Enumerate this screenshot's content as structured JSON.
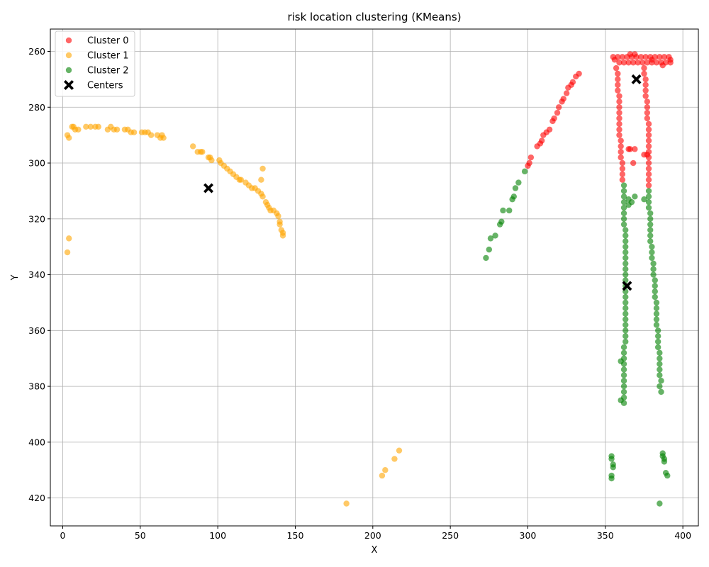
{
  "chart_data": {
    "type": "scatter",
    "title": "risk location clustering (KMeans)",
    "xlabel": "X",
    "ylabel": "Y",
    "xlim": [
      -8,
      410
    ],
    "ylim": [
      430,
      252
    ],
    "y_inverted": true,
    "grid": true,
    "legend_position": "top-left",
    "x_ticks": [
      0,
      50,
      100,
      150,
      200,
      250,
      300,
      350,
      400
    ],
    "y_ticks": [
      260,
      280,
      300,
      320,
      340,
      360,
      380,
      400,
      420
    ],
    "series": [
      {
        "name": "Cluster 0",
        "color": "#ff0000",
        "alpha": 0.6,
        "points": [
          [
            333,
            268
          ],
          [
            331,
            269
          ],
          [
            329,
            271
          ],
          [
            328,
            272
          ],
          [
            326,
            273
          ],
          [
            325,
            275
          ],
          [
            323,
            277
          ],
          [
            322,
            278
          ],
          [
            320,
            280
          ],
          [
            319,
            282
          ],
          [
            317,
            284
          ],
          [
            316,
            285
          ],
          [
            314,
            288
          ],
          [
            312,
            289
          ],
          [
            310,
            290
          ],
          [
            309,
            292
          ],
          [
            308,
            293
          ],
          [
            306,
            294
          ],
          [
            302,
            298
          ],
          [
            301,
            300
          ],
          [
            300,
            301
          ],
          [
            355,
            262
          ],
          [
            358,
            262
          ],
          [
            361,
            262
          ],
          [
            364,
            262
          ],
          [
            367,
            262
          ],
          [
            370,
            262
          ],
          [
            373,
            262
          ],
          [
            376,
            262
          ],
          [
            379,
            262
          ],
          [
            382,
            262
          ],
          [
            385,
            262
          ],
          [
            388,
            262
          ],
          [
            391,
            262
          ],
          [
            392,
            263
          ],
          [
            392,
            264
          ],
          [
            389,
            264
          ],
          [
            386,
            264
          ],
          [
            383,
            264
          ],
          [
            380,
            264
          ],
          [
            377,
            264
          ],
          [
            374,
            264
          ],
          [
            371,
            264
          ],
          [
            368,
            264
          ],
          [
            365,
            264
          ],
          [
            362,
            264
          ],
          [
            359,
            264
          ],
          [
            356,
            263
          ],
          [
            366,
            261
          ],
          [
            369,
            261
          ],
          [
            380,
            263
          ],
          [
            387,
            265
          ],
          [
            357,
            266
          ],
          [
            358,
            268
          ],
          [
            358,
            270
          ],
          [
            358,
            272
          ],
          [
            358,
            274
          ],
          [
            359,
            276
          ],
          [
            359,
            278
          ],
          [
            359,
            280
          ],
          [
            359,
            282
          ],
          [
            359,
            284
          ],
          [
            359,
            286
          ],
          [
            359,
            288
          ],
          [
            359,
            290
          ],
          [
            360,
            292
          ],
          [
            360,
            294
          ],
          [
            360,
            296
          ],
          [
            360,
            298
          ],
          [
            361,
            300
          ],
          [
            361,
            302
          ],
          [
            361,
            304
          ],
          [
            361,
            306
          ],
          [
            375,
            266
          ],
          [
            375,
            268
          ],
          [
            376,
            270
          ],
          [
            376,
            272
          ],
          [
            376,
            274
          ],
          [
            376,
            276
          ],
          [
            377,
            278
          ],
          [
            377,
            280
          ],
          [
            377,
            282
          ],
          [
            377,
            284
          ],
          [
            378,
            286
          ],
          [
            378,
            288
          ],
          [
            378,
            290
          ],
          [
            378,
            292
          ],
          [
            378,
            294
          ],
          [
            378,
            296
          ],
          [
            378,
            298
          ],
          [
            378,
            300
          ],
          [
            378,
            302
          ],
          [
            378,
            304
          ],
          [
            378,
            306
          ],
          [
            378,
            308
          ],
          [
            365,
            295
          ],
          [
            366,
            295
          ],
          [
            369,
            295
          ],
          [
            368,
            300
          ],
          [
            375,
            297
          ],
          [
            377,
            297
          ]
        ]
      },
      {
        "name": "Cluster 1",
        "color": "#ffa500",
        "alpha": 0.6,
        "points": [
          [
            3,
            290
          ],
          [
            4,
            291
          ],
          [
            6,
            287
          ],
          [
            7,
            287
          ],
          [
            8,
            288
          ],
          [
            10,
            288
          ],
          [
            15,
            287
          ],
          [
            18,
            287
          ],
          [
            21,
            287
          ],
          [
            23,
            287
          ],
          [
            29,
            288
          ],
          [
            31,
            287
          ],
          [
            33,
            288
          ],
          [
            35,
            288
          ],
          [
            40,
            288
          ],
          [
            42,
            288
          ],
          [
            44,
            289
          ],
          [
            46,
            289
          ],
          [
            51,
            289
          ],
          [
            53,
            289
          ],
          [
            55,
            289
          ],
          [
            57,
            290
          ],
          [
            61,
            290
          ],
          [
            63,
            291
          ],
          [
            64,
            290
          ],
          [
            65,
            291
          ],
          [
            4,
            327
          ],
          [
            3,
            332
          ],
          [
            84,
            294
          ],
          [
            87,
            296
          ],
          [
            89,
            296
          ],
          [
            90,
            296
          ],
          [
            94,
            298
          ],
          [
            95,
            298
          ],
          [
            96,
            299
          ],
          [
            101,
            299
          ],
          [
            102,
            300
          ],
          [
            104,
            301
          ],
          [
            106,
            302
          ],
          [
            108,
            303
          ],
          [
            110,
            304
          ],
          [
            112,
            305
          ],
          [
            114,
            306
          ],
          [
            115,
            306
          ],
          [
            118,
            307
          ],
          [
            120,
            308
          ],
          [
            122,
            309
          ],
          [
            124,
            309
          ],
          [
            126,
            310
          ],
          [
            128,
            311
          ],
          [
            129,
            312
          ],
          [
            131,
            314
          ],
          [
            132,
            315
          ],
          [
            133,
            316
          ],
          [
            134,
            317
          ],
          [
            136,
            317
          ],
          [
            138,
            318
          ],
          [
            139,
            319
          ],
          [
            140,
            321
          ],
          [
            140,
            322
          ],
          [
            141,
            324
          ],
          [
            142,
            325
          ],
          [
            142,
            326
          ],
          [
            128,
            306
          ],
          [
            129,
            302
          ],
          [
            217,
            403
          ],
          [
            214,
            406
          ],
          [
            208,
            410
          ],
          [
            206,
            412
          ],
          [
            183,
            422
          ]
        ]
      },
      {
        "name": "Cluster 2",
        "color": "#008000",
        "alpha": 0.6,
        "points": [
          [
            298,
            303
          ],
          [
            294,
            307
          ],
          [
            292,
            309
          ],
          [
            291,
            312
          ],
          [
            290,
            313
          ],
          [
            288,
            317
          ],
          [
            284,
            317
          ],
          [
            283,
            321
          ],
          [
            282,
            322
          ],
          [
            279,
            326
          ],
          [
            276,
            327
          ],
          [
            275,
            331
          ],
          [
            273,
            334
          ],
          [
            362,
            308
          ],
          [
            362,
            310
          ],
          [
            362,
            312
          ],
          [
            362,
            314
          ],
          [
            362,
            316
          ],
          [
            362,
            318
          ],
          [
            362,
            320
          ],
          [
            362,
            322
          ],
          [
            363,
            324
          ],
          [
            363,
            326
          ],
          [
            363,
            328
          ],
          [
            363,
            330
          ],
          [
            363,
            332
          ],
          [
            363,
            334
          ],
          [
            363,
            336
          ],
          [
            363,
            338
          ],
          [
            363,
            340
          ],
          [
            363,
            342
          ],
          [
            363,
            344
          ],
          [
            363,
            346
          ],
          [
            363,
            348
          ],
          [
            363,
            350
          ],
          [
            363,
            352
          ],
          [
            363,
            354
          ],
          [
            363,
            356
          ],
          [
            363,
            358
          ],
          [
            363,
            360
          ],
          [
            363,
            362
          ],
          [
            363,
            364
          ],
          [
            362,
            366
          ],
          [
            362,
            368
          ],
          [
            362,
            370
          ],
          [
            362,
            372
          ],
          [
            362,
            374
          ],
          [
            362,
            376
          ],
          [
            362,
            378
          ],
          [
            362,
            380
          ],
          [
            362,
            382
          ],
          [
            362,
            384
          ],
          [
            362,
            386
          ],
          [
            360,
            371
          ],
          [
            360,
            385
          ],
          [
            365,
            313
          ],
          [
            365,
            315
          ],
          [
            367,
            314
          ],
          [
            369,
            312
          ],
          [
            375,
            313
          ],
          [
            378,
            310
          ],
          [
            378,
            312
          ],
          [
            378,
            314
          ],
          [
            378,
            316
          ],
          [
            379,
            318
          ],
          [
            379,
            320
          ],
          [
            379,
            322
          ],
          [
            379,
            324
          ],
          [
            379,
            326
          ],
          [
            379,
            328
          ],
          [
            380,
            330
          ],
          [
            380,
            332
          ],
          [
            380,
            334
          ],
          [
            381,
            336
          ],
          [
            381,
            338
          ],
          [
            381,
            340
          ],
          [
            382,
            342
          ],
          [
            382,
            344
          ],
          [
            382,
            346
          ],
          [
            382,
            348
          ],
          [
            383,
            350
          ],
          [
            383,
            352
          ],
          [
            383,
            354
          ],
          [
            383,
            356
          ],
          [
            383,
            358
          ],
          [
            384,
            360
          ],
          [
            384,
            362
          ],
          [
            384,
            364
          ],
          [
            384,
            366
          ],
          [
            385,
            368
          ],
          [
            385,
            370
          ],
          [
            385,
            372
          ],
          [
            385,
            374
          ],
          [
            385,
            376
          ],
          [
            386,
            378
          ],
          [
            385,
            380
          ],
          [
            386,
            382
          ],
          [
            354,
            405
          ],
          [
            354,
            406
          ],
          [
            355,
            408
          ],
          [
            355,
            409
          ],
          [
            354,
            412
          ],
          [
            354,
            413
          ],
          [
            387,
            405
          ],
          [
            387,
            404
          ],
          [
            388,
            406
          ],
          [
            388,
            407
          ],
          [
            389,
            411
          ],
          [
            390,
            412
          ],
          [
            385,
            422
          ]
        ]
      },
      {
        "name": "Centers",
        "color": "#000000",
        "marker": "X",
        "points": [
          [
            370,
            270
          ],
          [
            94,
            309
          ],
          [
            364,
            344
          ]
        ]
      }
    ]
  }
}
